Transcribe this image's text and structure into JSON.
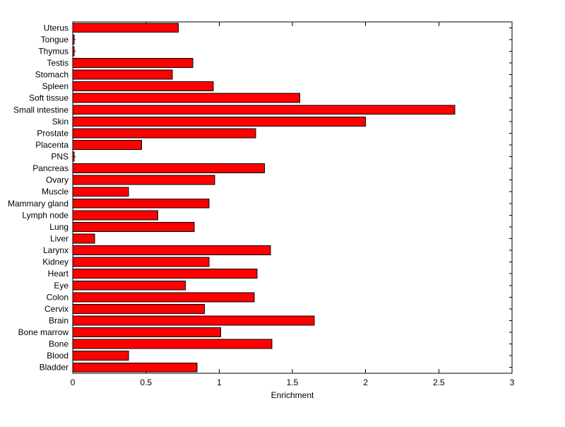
{
  "chart_data": {
    "type": "bar",
    "orientation": "horizontal",
    "title": "",
    "xlabel": "Enrichment",
    "ylabel": "",
    "xlim": [
      0,
      3
    ],
    "xticks": [
      0,
      0.5,
      1,
      1.5,
      2,
      2.5,
      3
    ],
    "xtick_labels": [
      "0",
      "0.5",
      "1",
      "1.5",
      "2",
      "2.5",
      "3"
    ],
    "grid": false,
    "legend": null,
    "bar_color": "#ff0000",
    "bar_edge_color": "#000000",
    "axis_color": "#000000",
    "background": "#ffffff",
    "category_order": "top-to-bottom",
    "categories": [
      "Uterus",
      "Tongue",
      "Thymus",
      "Testis",
      "Stomach",
      "Spleen",
      "Soft tissue",
      "Small intestine",
      "Skin",
      "Prostate",
      "Placenta",
      "PNS",
      "Pancreas",
      "Ovary",
      "Muscle",
      "Mammary gland",
      "Lymph node",
      "Lung",
      "Liver",
      "Larynx",
      "Kidney",
      "Heart",
      "Eye",
      "Colon",
      "Cervix",
      "Brain",
      "Bone marrow",
      "Bone",
      "Blood",
      "Bladder"
    ],
    "values": [
      0.72,
      0.01,
      0.01,
      0.82,
      0.68,
      0.96,
      1.55,
      2.61,
      2.0,
      1.25,
      0.47,
      0.01,
      1.31,
      0.97,
      0.38,
      0.93,
      0.58,
      0.83,
      0.15,
      1.35,
      0.93,
      1.26,
      0.77,
      1.24,
      0.9,
      1.65,
      1.01,
      1.36,
      0.38,
      0.85
    ]
  }
}
